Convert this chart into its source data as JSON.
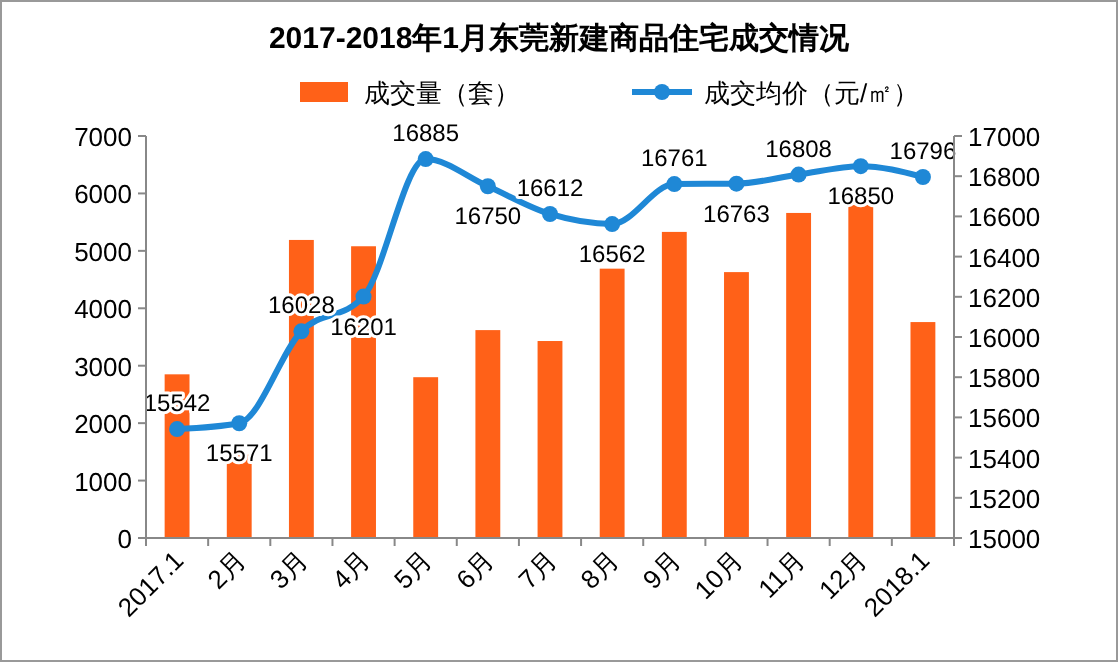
{
  "chart_data": {
    "type": "bar",
    "title": "2017-2018年1月东莞新建商品住宅成交情况",
    "categories": [
      "2017.1",
      "2月",
      "3月",
      "4月",
      "5月",
      "6月",
      "7月",
      "8月",
      "9月",
      "10月",
      "11月",
      "12月",
      "2018.1"
    ],
    "series": [
      {
        "name": "成交量（套）",
        "color": "#ff6118",
        "values": [
          2850,
          1450,
          5190,
          5080,
          2800,
          3620,
          3430,
          4690,
          5330,
          4630,
          5660,
          5800,
          3760
        ]
      },
      {
        "name": "成交均价（元/㎡）",
        "type": "line",
        "axis": "y2",
        "color": "#1f88d6",
        "marker": "circle",
        "data_labels": true,
        "values": [
          15542,
          15571,
          16028,
          16201,
          16885,
          16750,
          16612,
          16562,
          16761,
          16763,
          16808,
          16850,
          16796
        ]
      }
    ],
    "ylim": [
      0,
      7000
    ],
    "yticks": [
      0,
      1000,
      2000,
      3000,
      4000,
      5000,
      6000,
      7000
    ],
    "y2lim": [
      15000,
      17000
    ],
    "y2ticks": [
      15000,
      15200,
      15400,
      15600,
      15800,
      16000,
      16200,
      16400,
      16600,
      16800,
      17000
    ],
    "legend": "top",
    "grid": false
  }
}
